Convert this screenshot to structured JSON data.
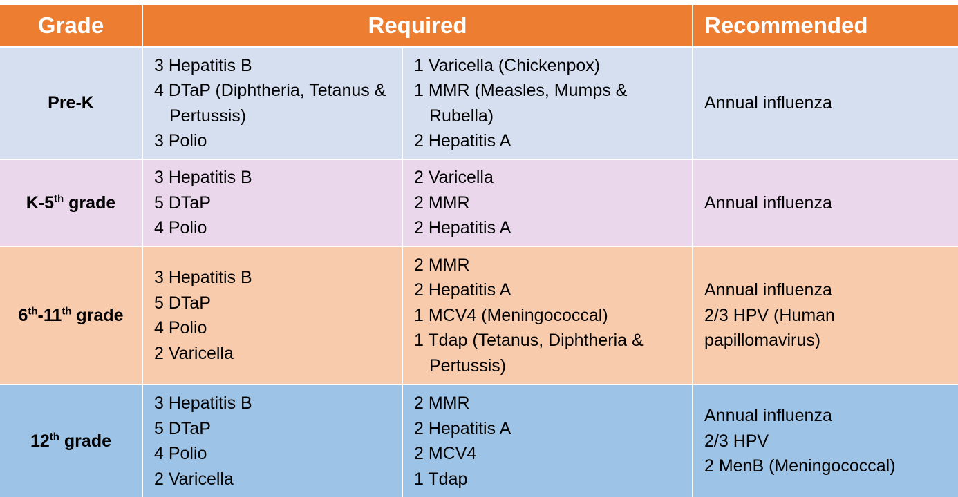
{
  "header": {
    "grade": "Grade",
    "required": "Required",
    "recommended": "Recommended"
  },
  "rows": [
    {
      "grade": {
        "base": "Pre-K",
        "sup1": "",
        "mid": "",
        "sup2": "",
        "tail": ""
      },
      "req1": [
        "3 Hepatitis B",
        "4 DTaP (Diphtheria, Tetanus & Pertussis)",
        "3 Polio"
      ],
      "req2": [
        "1 Varicella (Chickenpox)",
        "1 MMR (Measles, Mumps & Rubella)",
        "2 Hepatitis A"
      ],
      "rec": [
        "Annual influenza"
      ]
    },
    {
      "grade": {
        "base": "K-5",
        "sup1": "th",
        "mid": " grade",
        "sup2": "",
        "tail": ""
      },
      "req1": [
        "3 Hepatitis B",
        "5 DTaP",
        "4 Polio"
      ],
      "req2": [
        "2 Varicella",
        "2 MMR",
        "2 Hepatitis A"
      ],
      "rec": [
        "Annual influenza"
      ]
    },
    {
      "grade": {
        "base": "6",
        "sup1": "th",
        "mid": "-11",
        "sup2": "th",
        "tail": " grade"
      },
      "req1": [
        "3 Hepatitis B",
        "5 DTaP",
        "4 Polio",
        "2 Varicella"
      ],
      "req2": [
        "2 MMR",
        "2 Hepatitis A",
        "1 MCV4 (Meningococcal)",
        "1 Tdap (Tetanus, Diphtheria & Pertussis)"
      ],
      "rec": [
        "Annual influenza",
        "2/3 HPV (Human papillomavirus)"
      ]
    },
    {
      "grade": {
        "base": "12",
        "sup1": "th",
        "mid": " grade",
        "sup2": "",
        "tail": ""
      },
      "req1": [
        "3 Hepatitis B",
        "5 DTaP",
        "4 Polio",
        "2 Varicella"
      ],
      "req2": [
        "2 MMR",
        "2 Hepatitis A",
        "2 MCV4",
        "1 Tdap"
      ],
      "rec": [
        "Annual influenza",
        "2/3 HPV",
        "2 MenB (Meningococcal)"
      ]
    }
  ]
}
